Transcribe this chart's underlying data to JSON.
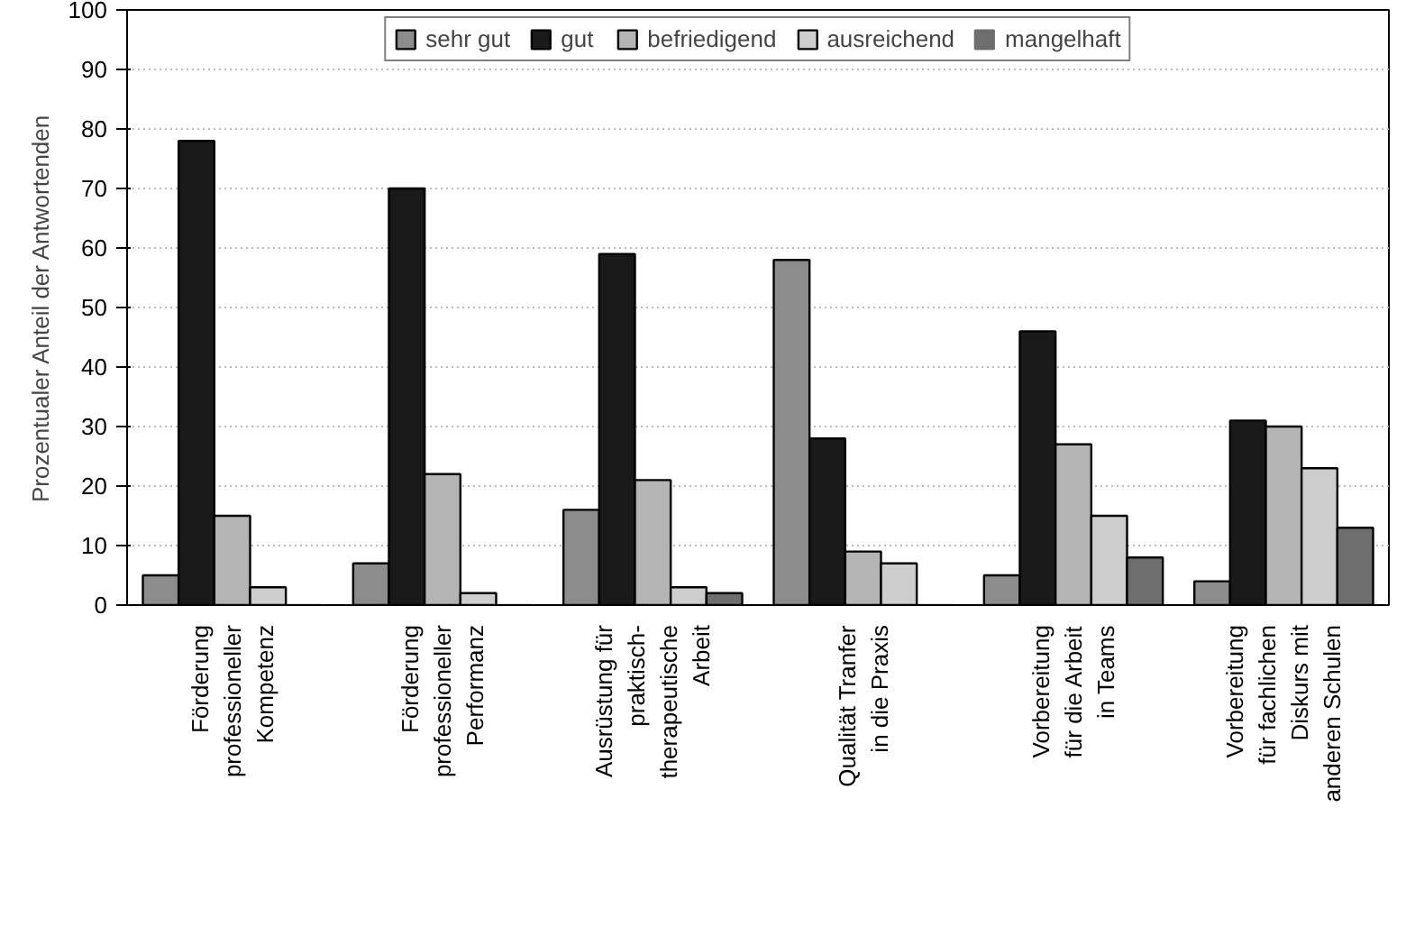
{
  "chart_data": {
    "type": "bar",
    "ylabel": "Prozentualer Anteil der Antwortenden",
    "categories": [
      "Förderung\nprofessioneller\nKompetenz",
      "Förderung\nprofessioneller\nPerformanz",
      "Ausrüstung für\npraktisch-\ntherapeutische\nArbeit",
      "Qualität Tranfer\nin die Praxis",
      "Vorbereitung\nfür die Arbeit\nin Teams",
      "Vorbereitung\nfür fachlichen\nDiskurs mit\nanderen Schulen"
    ],
    "series": [
      {
        "name": "sehr gut",
        "color": "#8c8c8c",
        "values": [
          5,
          7,
          16,
          58,
          5,
          4
        ]
      },
      {
        "name": "gut",
        "color": "#1a1a1a",
        "values": [
          78,
          70,
          59,
          28,
          46,
          31
        ]
      },
      {
        "name": "befriedigend",
        "color": "#b4b4b4",
        "values": [
          15,
          22,
          21,
          9,
          27,
          30
        ]
      },
      {
        "name": "ausreichend",
        "color": "#cdcdcd",
        "values": [
          3,
          2,
          3,
          7,
          15,
          23
        ]
      },
      {
        "name": "mangelhaft",
        "color": "#6e6e6e",
        "values": [
          0,
          0,
          2,
          0,
          8,
          13
        ]
      }
    ],
    "ylim": [
      0,
      100
    ],
    "yticks": [
      0,
      10,
      20,
      30,
      40,
      50,
      60,
      70,
      80,
      90,
      100
    ],
    "grid": "y",
    "legend": "top"
  }
}
